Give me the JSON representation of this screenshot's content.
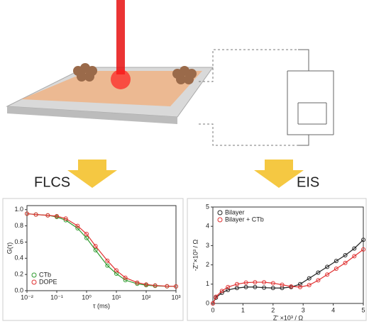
{
  "labels": {
    "left": "FLCS",
    "right": "EIS"
  },
  "chart_data": [
    {
      "type": "scatter",
      "xscale": "log",
      "lines": true,
      "xlabel": "τ (ms)",
      "ylabel": "G(τ)",
      "legend": "bottom-left",
      "xlim": [
        0.01,
        1000
      ],
      "ylim": [
        0,
        1.05
      ],
      "xticks": [
        {
          "value": 0.01,
          "label": "10⁻²"
        },
        {
          "value": 0.1,
          "label": "10⁻¹"
        },
        {
          "value": 1,
          "label": "10⁰"
        },
        {
          "value": 10,
          "label": "10¹"
        },
        {
          "value": 100,
          "label": "10²"
        },
        {
          "value": 1000,
          "label": "10³"
        }
      ],
      "yticks": [
        {
          "value": 0,
          "label": "0.0"
        },
        0.2,
        0.4,
        0.6,
        0.8,
        {
          "value": 1,
          "label": "1.0"
        }
      ],
      "x": [
        0.01,
        0.02,
        0.05,
        0.1,
        0.2,
        0.5,
        1,
        2,
        5,
        10,
        20,
        50,
        100,
        200,
        500,
        1000
      ],
      "series": [
        {
          "name": "CTb",
          "color": "#2e9a2e",
          "values": [
            0.95,
            0.94,
            0.93,
            0.91,
            0.87,
            0.77,
            0.65,
            0.5,
            0.31,
            0.21,
            0.13,
            0.085,
            0.068,
            0.059,
            0.054,
            0.052
          ]
        },
        {
          "name": "DOPE",
          "color": "#e03030",
          "values": [
            0.95,
            0.94,
            0.93,
            0.92,
            0.89,
            0.8,
            0.7,
            0.55,
            0.37,
            0.25,
            0.16,
            0.1,
            0.077,
            0.064,
            0.056,
            0.053
          ]
        }
      ]
    },
    {
      "type": "scatter",
      "lines": true,
      "xlabel": "Z' ×10³ / Ω",
      "ylabel": "-Z''×10³ / Ω",
      "legend": "top-left",
      "xlim": [
        0,
        5
      ],
      "ylim": [
        0,
        5
      ],
      "xticks": [
        0,
        1,
        2,
        3,
        4,
        5
      ],
      "yticks": [
        0,
        1,
        2,
        3,
        4,
        5
      ],
      "series": [
        {
          "name": "Bilayer",
          "color": "#222222",
          "x": [
            0,
            0.1,
            0.3,
            0.5,
            0.8,
            1.1,
            1.4,
            1.7,
            2,
            2.3,
            2.6,
            2.9,
            3.2,
            3.5,
            3.8,
            4.1,
            4.4,
            4.7,
            5
          ],
          "values": [
            0,
            0.3,
            0.55,
            0.7,
            0.8,
            0.85,
            0.85,
            0.82,
            0.8,
            0.8,
            0.85,
            1,
            1.3,
            1.6,
            1.9,
            2.2,
            2.5,
            2.85,
            3.3
          ]
        },
        {
          "name": "Bilayer + CTb",
          "color": "#e03030",
          "x": [
            0,
            0.1,
            0.3,
            0.5,
            0.8,
            1.1,
            1.4,
            1.7,
            2,
            2.3,
            2.6,
            2.9,
            3.2,
            3.5,
            3.8,
            4.1,
            4.4,
            4.7,
            5
          ],
          "values": [
            0,
            0.35,
            0.65,
            0.85,
            1,
            1.08,
            1.1,
            1.1,
            1.05,
            0.97,
            0.88,
            0.85,
            0.95,
            1.2,
            1.5,
            1.8,
            2.1,
            2.45,
            2.8
          ]
        }
      ]
    }
  ]
}
